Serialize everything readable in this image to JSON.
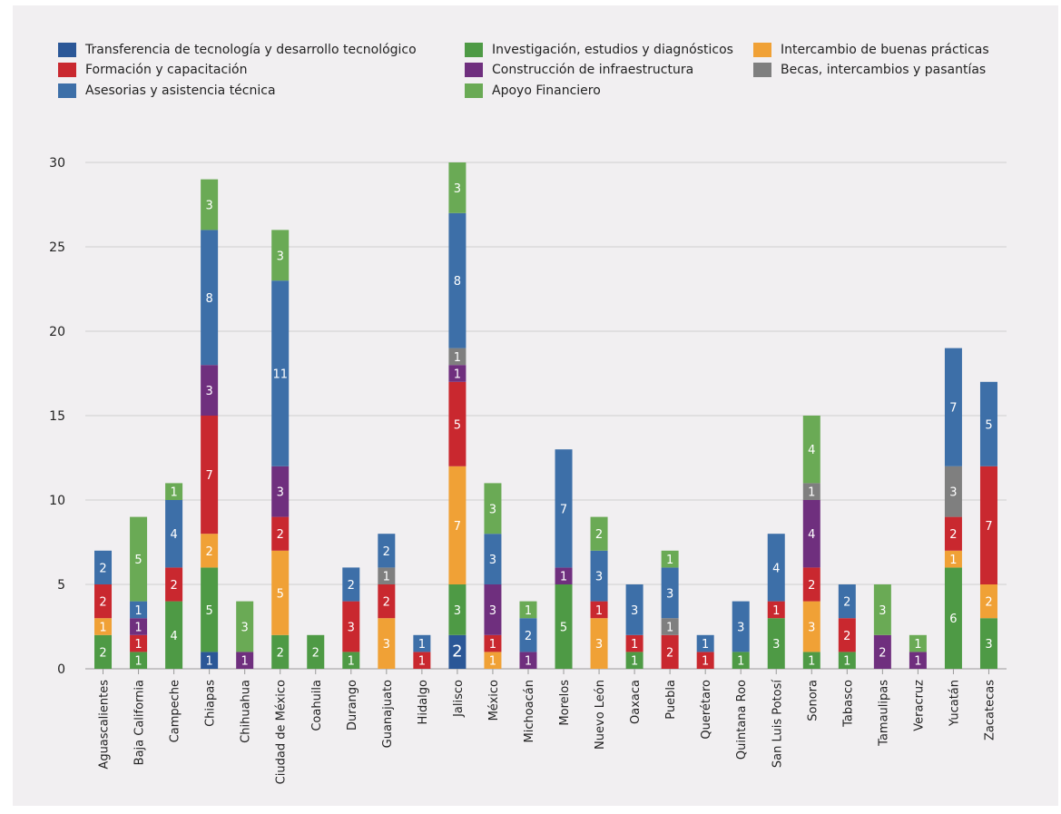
{
  "chart_data": {
    "type": "bar",
    "stacked": true,
    "ylim": [
      0,
      30
    ],
    "yticks": [
      0,
      5,
      10,
      15,
      20,
      25,
      30
    ],
    "grid": true,
    "legend_position": "top",
    "categories": [
      "Aguascalientes",
      "Baja California",
      "Campeche",
      "Chiapas",
      "Chihuahua",
      "Ciudad de México",
      "Coahuila",
      "Durango",
      "Guanajuato",
      "Hidalgo",
      "Jalisco",
      "México",
      "Michoacán",
      "Morelos",
      "Nuevo León",
      "Oaxaca",
      "Puebla",
      "Querétaro",
      "Quintana Roo",
      "San Luis Potosí",
      "Sonora",
      "Tabasco",
      "Tamaulipas",
      "Veracruz",
      "Yucatán",
      "Zacatecas"
    ],
    "series": [
      {
        "name": "Transferencia de tecnología y desarrollo tecnológico",
        "color": "#2b5797",
        "values": [
          0,
          0,
          0,
          1,
          0,
          0,
          0,
          0,
          0,
          0,
          2,
          0,
          0,
          0,
          0,
          0,
          0,
          0,
          0,
          0,
          0,
          0,
          0,
          0,
          0,
          0
        ]
      },
      {
        "name": "Investigación, estudios y diagnósticos",
        "color": "#4e9a45",
        "values": [
          2,
          1,
          4,
          5,
          0,
          2,
          2,
          1,
          0,
          0,
          3,
          0,
          0,
          5,
          0,
          1,
          0,
          0,
          1,
          3,
          1,
          1,
          0,
          0,
          6,
          3
        ]
      },
      {
        "name": "Intercambio de buenas prácticas",
        "color": "#f0a136",
        "values": [
          1,
          0,
          0,
          2,
          0,
          5,
          0,
          0,
          3,
          0,
          7,
          1,
          0,
          0,
          3,
          0,
          0,
          0,
          0,
          0,
          3,
          0,
          0,
          0,
          1,
          2
        ]
      },
      {
        "name": "Formación y capacitación",
        "color": "#c9282f",
        "values": [
          2,
          1,
          2,
          7,
          0,
          2,
          0,
          3,
          2,
          1,
          5,
          1,
          0,
          0,
          1,
          1,
          2,
          1,
          0,
          1,
          2,
          2,
          0,
          0,
          2,
          7
        ]
      },
      {
        "name": "Construcción de infraestructura",
        "color": "#6f2f7e",
        "values": [
          0,
          1,
          0,
          3,
          1,
          3,
          0,
          0,
          0,
          0,
          1,
          3,
          1,
          1,
          0,
          0,
          0,
          0,
          0,
          0,
          4,
          0,
          2,
          1,
          0,
          0
        ]
      },
      {
        "name": "Becas, intercambios y pasantías",
        "color": "#7f7f7f",
        "values": [
          0,
          0,
          0,
          0,
          0,
          0,
          0,
          0,
          1,
          0,
          1,
          0,
          0,
          0,
          0,
          0,
          1,
          0,
          0,
          0,
          1,
          0,
          0,
          0,
          3,
          0
        ]
      },
      {
        "name": "Asesorias y asistencia técnica",
        "color": "#3d6fa8",
        "values": [
          2,
          1,
          4,
          8,
          0,
          11,
          0,
          2,
          2,
          1,
          8,
          3,
          2,
          7,
          3,
          3,
          3,
          1,
          3,
          4,
          0,
          2,
          0,
          0,
          7,
          5
        ]
      },
      {
        "name": "Apoyo Financiero",
        "color": "#6aaa55",
        "values": [
          0,
          5,
          1,
          3,
          3,
          3,
          0,
          0,
          0,
          0,
          3,
          3,
          1,
          0,
          2,
          0,
          1,
          0,
          0,
          0,
          4,
          0,
          3,
          1,
          0,
          0
        ]
      }
    ]
  }
}
